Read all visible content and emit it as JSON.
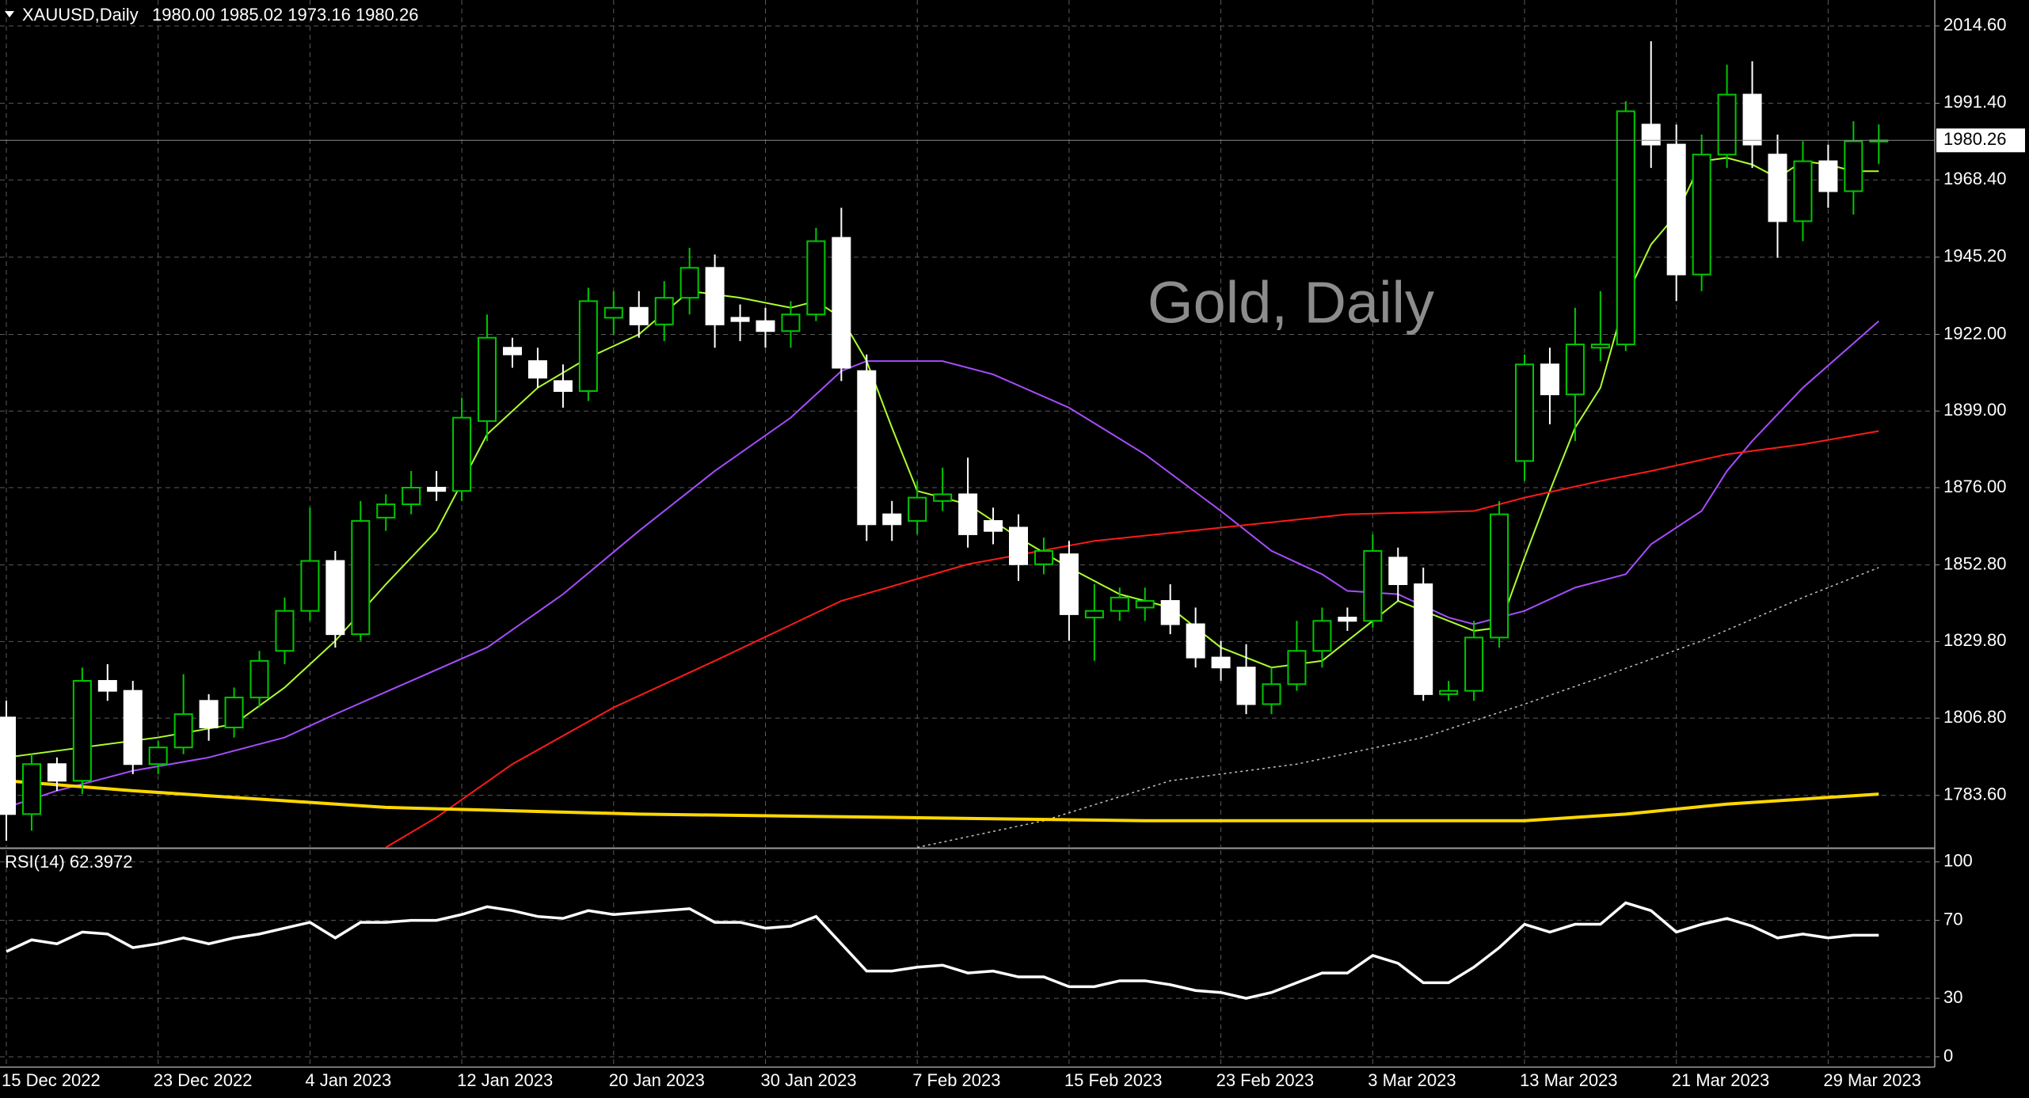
{
  "chart_data": [
    {
      "type": "candlestick",
      "symbol": "XAUUSD,Daily",
      "quote": "1980.00 1985.02 1973.16 1980.26",
      "watermark": "Gold, Daily",
      "categories": [
        "15 Dec 2022",
        null,
        null,
        null,
        null,
        null,
        "23 Dec 2022",
        null,
        null,
        null,
        null,
        null,
        "4 Jan 2023",
        null,
        null,
        null,
        null,
        null,
        "12 Jan 2023",
        null,
        null,
        null,
        null,
        null,
        "20 Jan 2023",
        null,
        null,
        null,
        null,
        null,
        "30 Jan 2023",
        null,
        null,
        null,
        null,
        null,
        "7 Feb 2023",
        null,
        null,
        null,
        null,
        null,
        "15 Feb 2023",
        null,
        null,
        null,
        null,
        null,
        "23 Feb 2023",
        null,
        null,
        null,
        null,
        null,
        "3 Mar 2023",
        null,
        null,
        null,
        null,
        null,
        "13 Mar 2023",
        null,
        null,
        null,
        null,
        null,
        "21 Mar 2023",
        null,
        null,
        null,
        null,
        null,
        "29 Mar 2023",
        null,
        null
      ],
      "candles": {
        "open": [
          1807,
          1778,
          1793,
          1788,
          1818,
          1815,
          1793,
          1798,
          1812,
          1804,
          1813,
          1827,
          1839,
          1854,
          1832,
          1867,
          1871,
          1876,
          1875,
          1896,
          1918,
          1914,
          1908,
          1905,
          1927,
          1930,
          1925,
          1933,
          1942,
          1927,
          1926,
          1923,
          1928,
          1951,
          1911,
          1868,
          1866,
          1872,
          1874,
          1866,
          1864,
          1853,
          1856,
          1837,
          1839,
          1840,
          1842,
          1835,
          1825,
          1822,
          1811,
          1817,
          1827,
          1837,
          1836,
          1855,
          1847,
          1814,
          1815,
          1831,
          1884,
          1913,
          1904,
          1918,
          1919,
          1985,
          1979,
          1940,
          1976,
          1994,
          1976,
          1956,
          1974,
          1965,
          1980
        ],
        "high": [
          1812,
          1796,
          1795,
          1822,
          1823,
          1818,
          1800,
          1820,
          1814,
          1816,
          1827,
          1843,
          1870,
          1857,
          1872,
          1874,
          1881,
          1881,
          1903,
          1928,
          1921,
          1918,
          1913,
          1936,
          1935,
          1935,
          1938,
          1948,
          1946,
          1931,
          1930,
          1932,
          1954,
          1960,
          1916,
          1872,
          1878,
          1882,
          1885,
          1870,
          1868,
          1861,
          1860,
          1847,
          1846,
          1846,
          1847,
          1840,
          1830,
          1829,
          1822,
          1836,
          1840,
          1840,
          1862,
          1858,
          1852,
          1818,
          1836,
          1872,
          1916,
          1918,
          1930,
          1935,
          1992,
          2010,
          1985,
          1982,
          2003,
          2004,
          1982,
          1980,
          1979,
          1986,
          1985.02
        ],
        "low": [
          1770,
          1773,
          1785,
          1784,
          1812,
          1790,
          1790,
          1796,
          1800,
          1801,
          1810,
          1823,
          1836,
          1828,
          1830,
          1863,
          1868,
          1872,
          1872,
          1890,
          1912,
          1906,
          1900,
          1902,
          1922,
          1921,
          1920,
          1928,
          1918,
          1920,
          1918,
          1918,
          1926,
          1908,
          1860,
          1860,
          1862,
          1869,
          1858,
          1859,
          1848,
          1850,
          1830,
          1824,
          1836,
          1836,
          1832,
          1822,
          1818,
          1808,
          1808,
          1815,
          1822,
          1833,
          1834,
          1842,
          1812,
          1812,
          1812,
          1828,
          1878,
          1895,
          1890,
          1914,
          1917,
          1972,
          1932,
          1935,
          1972,
          1972,
          1945,
          1950,
          1960,
          1958,
          1973.16
        ],
        "close": [
          1778,
          1793,
          1788,
          1818,
          1815,
          1793,
          1798,
          1808,
          1804,
          1813,
          1824,
          1839,
          1854,
          1832,
          1866,
          1871,
          1876,
          1875,
          1897,
          1921,
          1916,
          1909,
          1905,
          1932,
          1930,
          1925,
          1933,
          1942,
          1925,
          1926,
          1923,
          1928,
          1950,
          1912,
          1865,
          1865,
          1873,
          1874,
          1862,
          1863,
          1853,
          1857,
          1838,
          1839,
          1843,
          1842,
          1835,
          1825,
          1822,
          1811,
          1817,
          1827,
          1836,
          1836,
          1857,
          1847,
          1814,
          1815,
          1831,
          1868,
          1913,
          1904,
          1919,
          1919,
          1989,
          1979,
          1940,
          1976,
          1994,
          1979,
          1956,
          1974,
          1965,
          1980,
          1980.26
        ],
        "bull_color": "#00c800",
        "bear_color": "#ffffff"
      },
      "overlays": [
        {
          "color": "#adff2f",
          "style": "solid",
          "width": 2,
          "x": [
            0,
            3,
            6,
            9,
            11,
            13,
            15,
            17,
            19,
            21,
            23,
            25,
            27,
            29,
            31,
            32,
            33,
            34,
            35,
            36,
            38,
            40,
            42,
            44,
            46,
            48,
            50,
            52,
            54,
            55,
            57,
            58,
            59,
            60,
            61,
            62,
            63,
            64,
            65,
            66,
            67,
            68,
            69,
            70,
            71,
            72,
            73,
            74
          ],
          "values": [
            1795,
            1798,
            1801,
            1805,
            1816,
            1830,
            1847,
            1863,
            1892,
            1906,
            1915,
            1922,
            1935,
            1933,
            1930,
            1932,
            1927,
            1914,
            1894,
            1875,
            1871,
            1861,
            1852,
            1844,
            1840,
            1828,
            1822,
            1824,
            1836,
            1842,
            1836,
            1833,
            1834,
            1855,
            1875,
            1894,
            1906,
            1933,
            1949,
            1958,
            1974,
            1975,
            1973,
            1969,
            1974,
            1973,
            1971,
            1971
          ]
        },
        {
          "color": "#a64dff",
          "style": "solid",
          "width": 2,
          "x": [
            0,
            2,
            5,
            8,
            11,
            13,
            16,
            19,
            22,
            25,
            28,
            31,
            33,
            34,
            37,
            39,
            42,
            45,
            48,
            50,
            52,
            53,
            55,
            57,
            58,
            60,
            62,
            64,
            65,
            67,
            68,
            69,
            71,
            74
          ],
          "values": [
            1780,
            1785,
            1791,
            1795,
            1801,
            1808,
            1818,
            1828,
            1844,
            1863,
            1881,
            1897,
            1911,
            1914,
            1914,
            1910,
            1900,
            1886,
            1869,
            1857,
            1850,
            1845,
            1844,
            1837,
            1835,
            1839,
            1846,
            1850,
            1859,
            1869,
            1881,
            1890,
            1906,
            1926
          ]
        },
        {
          "color": "#ff1a1a",
          "style": "solid",
          "width": 2,
          "x": [
            15,
            17,
            20,
            24,
            28,
            33,
            38,
            43,
            48,
            53,
            58,
            60,
            63,
            65,
            68,
            71,
            74
          ],
          "values": [
            1768,
            1777,
            1793,
            1810,
            1824,
            1842,
            1853,
            1860,
            1864,
            1868,
            1869,
            1873,
            1878,
            1881,
            1886,
            1889,
            1893
          ]
        },
        {
          "color": "#c0c0c0",
          "style": "dotted",
          "width": 1.5,
          "x": [
            36,
            41,
            46,
            51,
            56,
            60,
            63,
            67,
            71,
            74
          ],
          "values": [
            1768,
            1776,
            1788,
            1793,
            1801,
            1811,
            1819,
            1830,
            1843,
            1852
          ]
        },
        {
          "color": "#ffd700",
          "style": "solid",
          "width": 4,
          "x": [
            0,
            5,
            15,
            25,
            35,
            45,
            55,
            60,
            64,
            68,
            74
          ],
          "values": [
            1788,
            1785,
            1780,
            1778,
            1777,
            1776,
            1776,
            1776,
            1778,
            1781,
            1784
          ]
        }
      ],
      "ylim": [
        1768.1,
        2022.4
      ],
      "yticks": [
        {
          "value": 2014.6,
          "label": "2014.60"
        },
        {
          "value": 1991.4,
          "label": "1991.40"
        },
        {
          "value": 1968.4,
          "label": "1968.40"
        },
        {
          "value": 1945.2,
          "label": "1945.20"
        },
        {
          "value": 1922,
          "label": "1922.00"
        },
        {
          "value": 1899,
          "label": "1899.00"
        },
        {
          "value": 1876,
          "label": "1876.00"
        },
        {
          "value": 1852.8,
          "label": "1852.80"
        },
        {
          "value": 1829.8,
          "label": "1829.80"
        },
        {
          "value": 1806.8,
          "label": "1806.80"
        },
        {
          "value": 1783.6,
          "label": "1783.60"
        }
      ],
      "grid": true
    },
    {
      "type": "line",
      "title": "RSI(14) 62.3972",
      "series": [
        {
          "color": "#ffffff",
          "values": [
            54,
            60,
            58,
            64,
            63,
            56,
            58,
            61,
            58,
            61,
            63,
            66,
            69,
            61,
            69,
            69,
            70,
            70,
            73,
            77,
            75,
            72,
            71,
            75,
            73,
            74,
            75,
            76,
            69,
            69,
            66,
            67,
            72,
            58,
            44,
            44,
            46,
            47,
            43,
            44,
            41,
            41,
            36,
            36,
            39,
            39,
            37,
            34,
            33,
            30,
            33,
            38,
            43,
            43,
            52,
            48,
            38,
            38,
            46,
            56,
            68,
            64,
            68,
            68,
            79,
            75,
            64,
            68,
            71,
            67,
            61,
            63,
            61,
            62.4,
            62.4
          ]
        }
      ],
      "ylim": [
        -5.3,
        106
      ],
      "yticks": [
        100,
        70,
        30,
        0
      ],
      "grid": true
    }
  ]
}
